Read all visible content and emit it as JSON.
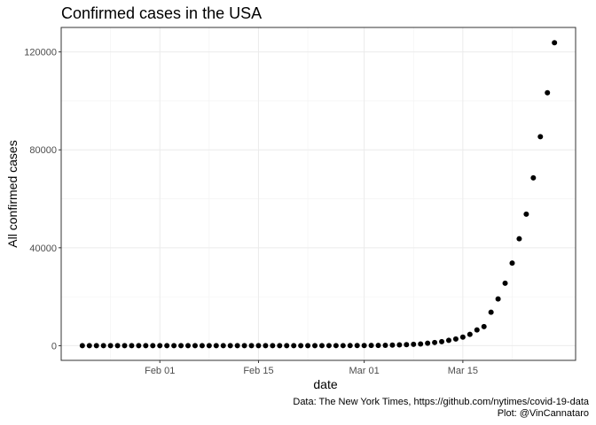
{
  "chart_data": {
    "type": "scatter",
    "title": "Confirmed cases in the USA",
    "xlabel": "date",
    "ylabel": "All confirmed cases",
    "x_ticks": [
      "Feb 01",
      "Feb 15",
      "Mar 01",
      "Mar 15"
    ],
    "y_ticks": [
      "0",
      "40000",
      "80000",
      "120000"
    ],
    "ylim": [
      -6000,
      130000
    ],
    "xlim": [
      "2020-01-18",
      "2020-03-31"
    ],
    "grid": true,
    "legend": "none",
    "point_color": "#000000",
    "x": [
      "2020-01-21",
      "2020-01-22",
      "2020-01-23",
      "2020-01-24",
      "2020-01-25",
      "2020-01-26",
      "2020-01-27",
      "2020-01-28",
      "2020-01-29",
      "2020-01-30",
      "2020-01-31",
      "2020-02-01",
      "2020-02-02",
      "2020-02-03",
      "2020-02-04",
      "2020-02-05",
      "2020-02-06",
      "2020-02-07",
      "2020-02-08",
      "2020-02-09",
      "2020-02-10",
      "2020-02-11",
      "2020-02-12",
      "2020-02-13",
      "2020-02-14",
      "2020-02-15",
      "2020-02-16",
      "2020-02-17",
      "2020-02-18",
      "2020-02-19",
      "2020-02-20",
      "2020-02-21",
      "2020-02-22",
      "2020-02-23",
      "2020-02-24",
      "2020-02-25",
      "2020-02-26",
      "2020-02-27",
      "2020-02-28",
      "2020-02-29",
      "2020-03-01",
      "2020-03-02",
      "2020-03-03",
      "2020-03-04",
      "2020-03-05",
      "2020-03-06",
      "2020-03-07",
      "2020-03-08",
      "2020-03-09",
      "2020-03-10",
      "2020-03-11",
      "2020-03-12",
      "2020-03-13",
      "2020-03-14",
      "2020-03-15",
      "2020-03-16",
      "2020-03-17",
      "2020-03-18",
      "2020-03-19",
      "2020-03-20",
      "2020-03-21",
      "2020-03-22",
      "2020-03-23",
      "2020-03-24",
      "2020-03-25",
      "2020-03-26",
      "2020-03-27",
      "2020-03-28"
    ],
    "y": [
      1,
      1,
      1,
      2,
      3,
      3,
      5,
      5,
      5,
      6,
      7,
      8,
      8,
      11,
      11,
      11,
      12,
      12,
      12,
      12,
      12,
      13,
      13,
      15,
      15,
      15,
      15,
      15,
      15,
      15,
      16,
      16,
      21,
      21,
      35,
      35,
      35,
      35,
      36,
      41,
      75,
      100,
      124,
      158,
      221,
      319,
      435,
      541,
      704,
      994,
      1301,
      1630,
      2183,
      2726,
      3499,
      4632,
      6421,
      7786,
      13680,
      19101,
      25493,
      33746,
      43667,
      53740,
      68572,
      85356,
      103321,
      123781
    ]
  },
  "caption": {
    "line1": "Data: The New York Times, https://github.com/nytimes/covid-19-data",
    "line2": "Plot: @VinCannataro"
  }
}
